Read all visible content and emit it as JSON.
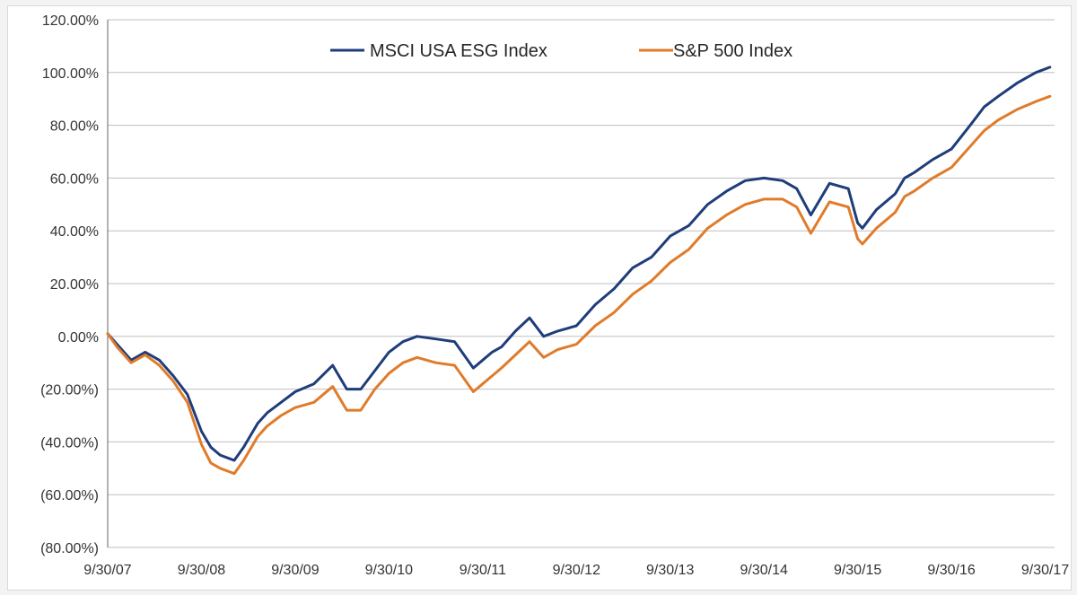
{
  "chart_data": {
    "type": "line",
    "title": "",
    "xlabel": "",
    "ylabel": "",
    "x_ticks": [
      "9/30/07",
      "9/30/08",
      "9/30/09",
      "9/30/10",
      "9/30/11",
      "9/30/12",
      "9/30/13",
      "9/30/14",
      "9/30/15",
      "9/30/16",
      "9/30/17"
    ],
    "y_ticks": [
      {
        "value": 120,
        "label": "120.00%"
      },
      {
        "value": 100,
        "label": "100.00%"
      },
      {
        "value": 80,
        "label": "80.00%"
      },
      {
        "value": 60,
        "label": "60.00%"
      },
      {
        "value": 40,
        "label": "40.00%"
      },
      {
        "value": 20,
        "label": "20.00%"
      },
      {
        "value": 0,
        "label": "0.00%"
      },
      {
        "value": -20,
        "label": "(20.00%)"
      },
      {
        "value": -40,
        "label": "(40.00%)"
      },
      {
        "value": -60,
        "label": "(60.00%)"
      },
      {
        "value": -80,
        "label": "(80.00%)"
      }
    ],
    "ylim": [
      -80,
      120
    ],
    "xlim": [
      0,
      10.1
    ],
    "grid": true,
    "legend_position": "top-center",
    "series": [
      {
        "name": "MSCI USA ESG Index",
        "color": "#1f3d7a",
        "x": [
          0,
          0.1,
          0.25,
          0.4,
          0.55,
          0.7,
          0.85,
          1.0,
          1.1,
          1.2,
          1.35,
          1.45,
          1.6,
          1.7,
          1.85,
          2.0,
          2.2,
          2.4,
          2.55,
          2.7,
          2.85,
          3.0,
          3.15,
          3.3,
          3.5,
          3.7,
          3.9,
          4.0,
          4.1,
          4.2,
          4.35,
          4.5,
          4.65,
          4.8,
          5.0,
          5.2,
          5.4,
          5.6,
          5.8,
          6.0,
          6.2,
          6.4,
          6.6,
          6.8,
          7.0,
          7.2,
          7.35,
          7.5,
          7.7,
          7.9,
          8.0,
          8.05,
          8.2,
          8.4,
          8.5,
          8.6,
          8.8,
          9.0,
          9.2,
          9.35,
          9.5,
          9.7,
          9.9,
          10.05
        ],
        "values": [
          1,
          -3,
          -9,
          -6,
          -9,
          -15,
          -22,
          -36,
          -42,
          -45,
          -47,
          -42,
          -33,
          -29,
          -25,
          -21,
          -18,
          -11,
          -20,
          -20,
          -13,
          -6,
          -2,
          0,
          -1,
          -2,
          -12,
          -9,
          -6,
          -4,
          2,
          7,
          0,
          2,
          4,
          12,
          18,
          26,
          30,
          38,
          42,
          50,
          55,
          59,
          60,
          59,
          56,
          46,
          58,
          56,
          43,
          41,
          48,
          54,
          60,
          62,
          67,
          71,
          80,
          87,
          91,
          96,
          100,
          102
        ]
      },
      {
        "name": "S&P 500 Index",
        "color": "#e07b2a",
        "x": [
          0,
          0.1,
          0.25,
          0.4,
          0.55,
          0.7,
          0.85,
          1.0,
          1.1,
          1.2,
          1.35,
          1.45,
          1.6,
          1.7,
          1.85,
          2.0,
          2.2,
          2.4,
          2.55,
          2.7,
          2.85,
          3.0,
          3.15,
          3.3,
          3.5,
          3.7,
          3.9,
          4.0,
          4.1,
          4.2,
          4.35,
          4.5,
          4.65,
          4.8,
          5.0,
          5.2,
          5.4,
          5.6,
          5.8,
          6.0,
          6.2,
          6.4,
          6.6,
          6.8,
          7.0,
          7.2,
          7.35,
          7.5,
          7.7,
          7.9,
          8.0,
          8.05,
          8.2,
          8.4,
          8.5,
          8.6,
          8.8,
          9.0,
          9.2,
          9.35,
          9.5,
          9.7,
          9.9,
          10.05
        ],
        "values": [
          1,
          -4,
          -10,
          -7,
          -11,
          -17,
          -25,
          -41,
          -48,
          -50,
          -52,
          -47,
          -38,
          -34,
          -30,
          -27,
          -25,
          -19,
          -28,
          -28,
          -20,
          -14,
          -10,
          -8,
          -10,
          -11,
          -21,
          -18,
          -15,
          -12,
          -7,
          -2,
          -8,
          -5,
          -3,
          4,
          9,
          16,
          21,
          28,
          33,
          41,
          46,
          50,
          52,
          52,
          49,
          39,
          51,
          49,
          37,
          35,
          41,
          47,
          53,
          55,
          60,
          64,
          72,
          78,
          82,
          86,
          89,
          91
        ]
      }
    ]
  }
}
